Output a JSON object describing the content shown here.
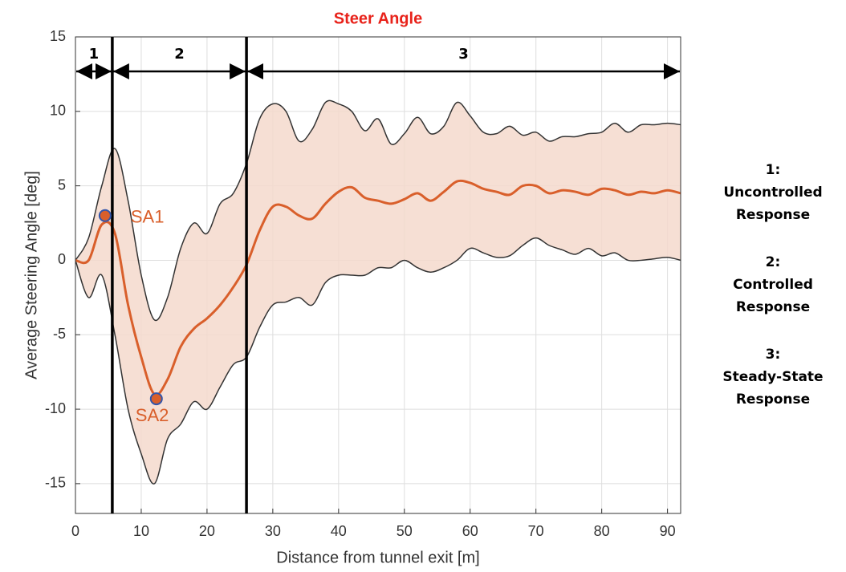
{
  "chart_data": {
    "type": "band-line",
    "title": "Steer Angle",
    "x_label": "Distance from tunnel exit [m]",
    "y_label": "Average Steering Angle [deg]",
    "xlim": [
      0,
      92
    ],
    "ylim": [
      -17,
      15
    ],
    "xticks": [
      0,
      10,
      20,
      30,
      40,
      50,
      60,
      70,
      80,
      90
    ],
    "yticks": [
      -15,
      -10,
      -5,
      0,
      5,
      10,
      15
    ],
    "grid": true,
    "x": [
      0,
      2,
      4,
      6,
      8,
      10,
      12,
      14,
      16,
      18,
      20,
      22,
      24,
      26,
      28,
      30,
      32,
      34,
      36,
      38,
      40,
      42,
      44,
      46,
      48,
      50,
      52,
      54,
      56,
      58,
      60,
      62,
      64,
      66,
      68,
      70,
      72,
      74,
      76,
      78,
      80,
      82,
      84,
      86,
      88,
      90,
      92
    ],
    "mean": {
      "color": "#d95f2b",
      "values": [
        0,
        0,
        2.4,
        1.8,
        -3,
        -6.5,
        -9,
        -8,
        -5.8,
        -4.6,
        -3.9,
        -3,
        -1.8,
        -0.3,
        2,
        3.6,
        3.6,
        3,
        2.8,
        3.8,
        4.6,
        4.9,
        4.2,
        4,
        3.8,
        4.1,
        4.5,
        4,
        4.6,
        5.3,
        5.2,
        4.8,
        4.6,
        4.4,
        5,
        5,
        4.5,
        4.7,
        4.6,
        4.4,
        4.8,
        4.7,
        4.4,
        4.6,
        4.5,
        4.7,
        4.5
      ]
    },
    "band": {
      "fill": "#f5d9cc",
      "edge_color": "#333333",
      "upper": [
        0,
        1.5,
        5,
        7.5,
        4,
        -1,
        -4,
        -2.5,
        0.8,
        2.5,
        1.8,
        3.8,
        4.5,
        6.5,
        9.5,
        10.5,
        10,
        8,
        8.8,
        10.6,
        10.5,
        10,
        8.7,
        9.5,
        7.8,
        8.5,
        9.6,
        8.5,
        9,
        10.6,
        9.7,
        8.6,
        8.5,
        9,
        8.4,
        8.6,
        8,
        8.3,
        8.3,
        8.5,
        8.6,
        9.2,
        8.6,
        9.1,
        9.1,
        9.2,
        9.1
      ],
      "lower": [
        0,
        -2.5,
        -1,
        -5,
        -10,
        -13,
        -15,
        -12,
        -11,
        -9.5,
        -10,
        -8.5,
        -7,
        -6.5,
        -4.5,
        -3,
        -2.8,
        -2.5,
        -3,
        -1.5,
        -1,
        -1,
        -1,
        -0.5,
        -0.5,
        0,
        -0.5,
        -0.8,
        -0.5,
        0,
        0.8,
        0.5,
        0.2,
        0.3,
        1,
        1.5,
        1,
        0.7,
        0.4,
        0.8,
        0.3,
        0.5,
        0,
        0,
        0.1,
        0.2,
        0
      ]
    },
    "markers": [
      {
        "label": "SA1",
        "x": 4.5,
        "y": 3,
        "color": "#d95f2b",
        "edge_color": "#3355aa"
      },
      {
        "label": "SA2",
        "x": 12.3,
        "y": -9.3,
        "color": "#d95f2b",
        "edge_color": "#3355aa"
      }
    ],
    "regions": [
      {
        "label": "1",
        "start": 0,
        "end": 5.6
      },
      {
        "label": "2",
        "start": 5.6,
        "end": 26
      },
      {
        "label": "3",
        "start": 26,
        "end": 92
      }
    ],
    "side_notes": [
      [
        "1:",
        "Uncontrolled",
        "Response"
      ],
      [
        "2:",
        "Controlled",
        "Response"
      ],
      [
        "3:",
        "Steady-State",
        "Response"
      ]
    ]
  }
}
